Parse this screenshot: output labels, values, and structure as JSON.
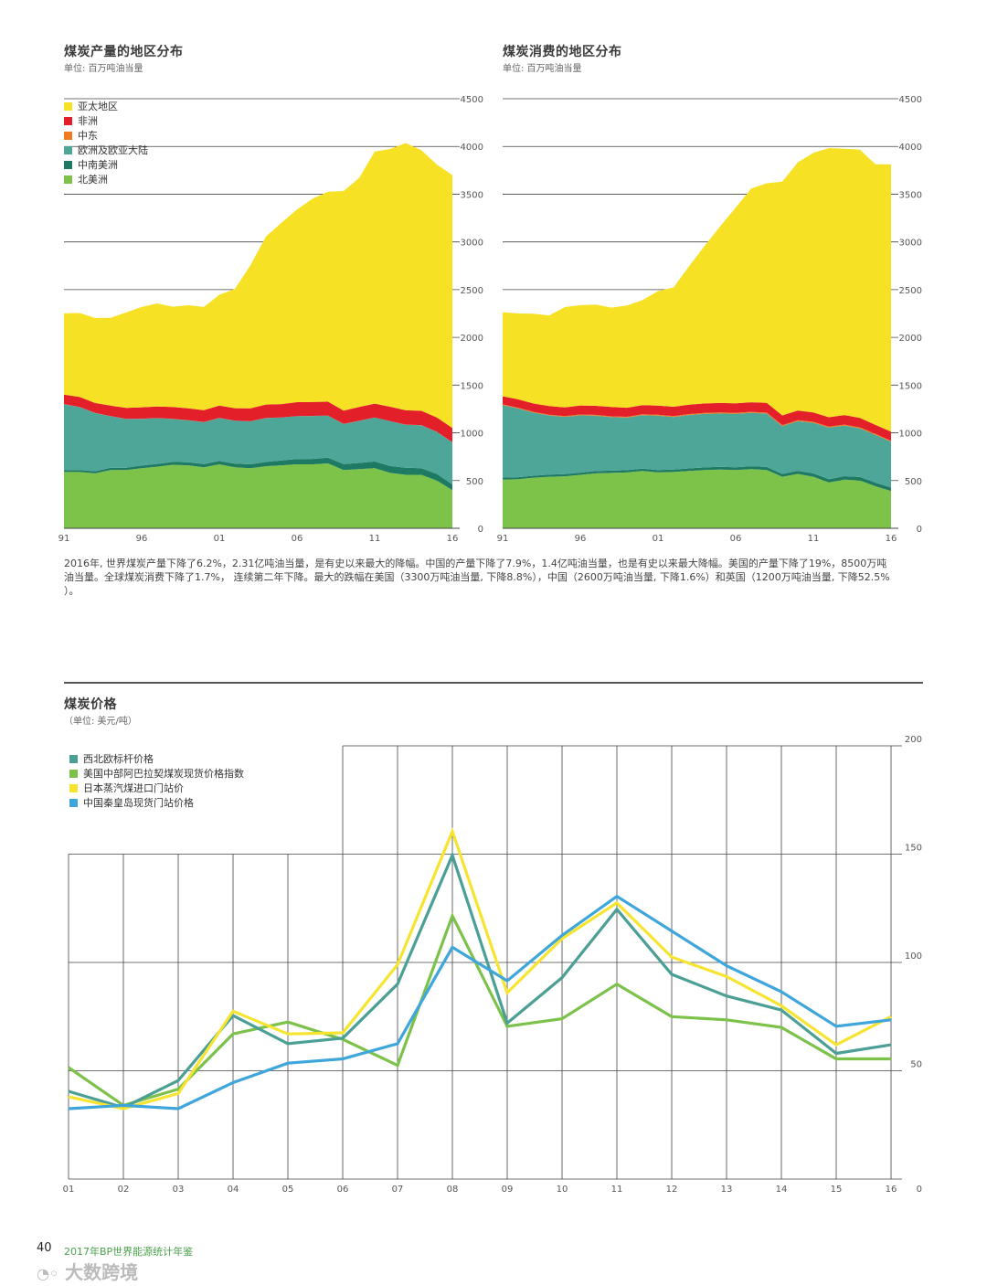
{
  "production": {
    "title": "煤炭产量的地区分布",
    "unit": "单位: 百万吨油当量"
  },
  "consumption": {
    "title": "煤炭消费的地区分布",
    "unit": "单位: 百万吨油当量"
  },
  "prices": {
    "title": "煤炭价格",
    "unit": "（单位: 美元/吨）"
  },
  "paragraph": {
    "line1": "2016年, 世界煤炭产量下降了6.2%，2.31亿吨油当量，是有史以来最大的降幅。中国的产量下降了7.9%，1.4亿吨油当量，也是有史以来最大降幅。美国的产量下降了19%，8500万吨",
    "line2": "油当量。全球煤炭消费下降了1.7%，  连续第二年下降。最大的跌幅在美国（3300万吨油当量, 下降8.8%），中国（2600万吨油当量, 下降1.6%）和英国（1200万吨油当量, 下降52.5%",
    "line3": "）。"
  },
  "footer": {
    "page_number": "40",
    "publication": "2017年BP世界能源统计年鉴",
    "watermark": "大数跨境"
  },
  "colors": {
    "asia_pacific": "#f7e124",
    "africa": "#e3202a",
    "middle_east": "#f07c22",
    "europe_eurasia": "#4ea699",
    "s_c_america": "#1f7a63",
    "north_america": "#7dc34a",
    "nw_europe_price": "#4b9f95",
    "us_appalachian_price": "#7cc24a",
    "japan_price": "#f6e431",
    "china_qhd_price": "#3fa6dc"
  },
  "chart_data": [
    {
      "id": "production",
      "type": "area",
      "stacked": true,
      "title": "煤炭产量的地区分布",
      "ylabel": "单位: 百万吨油当量",
      "ylim": [
        0,
        4500
      ],
      "yticks": [
        "4500",
        "4000",
        "3500",
        "3000",
        "2500",
        "2000",
        "1500",
        "1000",
        "500",
        "0"
      ],
      "xtick_labels": [
        "91",
        "96",
        "01",
        "06",
        "11",
        "16"
      ],
      "legend": [
        "亚太地区",
        "非洲",
        "中东",
        "欧洲及欧亚大陆",
        "中南美洲",
        "北美洲"
      ],
      "x": [
        1991,
        1992,
        1993,
        1994,
        1995,
        1996,
        1997,
        1998,
        1999,
        2000,
        2001,
        2002,
        2003,
        2004,
        2005,
        2006,
        2007,
        2008,
        2009,
        2010,
        2011,
        2012,
        2013,
        2014,
        2015,
        2016
      ],
      "series": [
        {
          "name": "北美洲",
          "values": [
            590,
            590,
            575,
            610,
            610,
            630,
            645,
            665,
            660,
            640,
            670,
            640,
            630,
            650,
            660,
            670,
            670,
            680,
            610,
            620,
            630,
            580,
            560,
            560,
            500,
            400
          ]
        },
        {
          "name": "中南美洲",
          "values": [
            20,
            20,
            22,
            24,
            25,
            27,
            29,
            30,
            31,
            32,
            35,
            37,
            40,
            45,
            50,
            55,
            57,
            60,
            62,
            65,
            70,
            72,
            75,
            70,
            70,
            60
          ]
        },
        {
          "name": "欧洲及欧亚大陆",
          "values": [
            690,
            660,
            610,
            540,
            510,
            490,
            480,
            450,
            440,
            440,
            450,
            450,
            450,
            460,
            450,
            450,
            450,
            440,
            420,
            440,
            460,
            470,
            450,
            450,
            440,
            440
          ]
        },
        {
          "name": "中东",
          "values": [
            1,
            1,
            1,
            1,
            1,
            1,
            1,
            1,
            1,
            1,
            1,
            1,
            1,
            1,
            1,
            1,
            1,
            1,
            1,
            1,
            1,
            1,
            1,
            1,
            1,
            1
          ]
        },
        {
          "name": "非洲",
          "values": [
            100,
            105,
            105,
            110,
            115,
            120,
            120,
            125,
            125,
            125,
            130,
            130,
            135,
            140,
            140,
            145,
            145,
            145,
            140,
            145,
            145,
            150,
            150,
            150,
            150,
            150
          ]
        },
        {
          "name": "亚太地区",
          "values": [
            850,
            880,
            890,
            920,
            1000,
            1050,
            1080,
            1050,
            1080,
            1080,
            1160,
            1250,
            1500,
            1760,
            1900,
            2020,
            2130,
            2200,
            2300,
            2400,
            2640,
            2700,
            2800,
            2730,
            2650,
            2650
          ]
        }
      ]
    },
    {
      "id": "consumption",
      "type": "area",
      "stacked": true,
      "title": "煤炭消费的地区分布",
      "ylabel": "单位: 百万吨油当量",
      "ylim": [
        0,
        4500
      ],
      "yticks": [
        "4500",
        "4000",
        "3500",
        "3000",
        "2500",
        "2000",
        "1500",
        "1000",
        "500",
        "0"
      ],
      "xtick_labels": [
        "91",
        "96",
        "01",
        "06",
        "11",
        "16"
      ],
      "x": [
        1991,
        1992,
        1993,
        1994,
        1995,
        1996,
        1997,
        1998,
        1999,
        2000,
        2001,
        2002,
        2003,
        2004,
        2005,
        2006,
        2007,
        2008,
        2009,
        2010,
        2011,
        2012,
        2013,
        2014,
        2015,
        2016
      ],
      "series": [
        {
          "name": "北美洲",
          "values": [
            510,
            515,
            530,
            540,
            545,
            560,
            575,
            580,
            585,
            600,
            585,
            590,
            600,
            610,
            615,
            610,
            620,
            610,
            540,
            570,
            540,
            480,
            510,
            500,
            440,
            390
          ]
        },
        {
          "name": "中南美洲",
          "values": [
            20,
            20,
            21,
            22,
            22,
            23,
            24,
            24,
            24,
            25,
            25,
            25,
            27,
            28,
            28,
            30,
            30,
            32,
            30,
            32,
            35,
            35,
            36,
            37,
            38,
            37
          ]
        },
        {
          "name": "欧洲及欧亚大陆",
          "values": [
            760,
            720,
            660,
            620,
            600,
            600,
            580,
            560,
            550,
            560,
            570,
            550,
            560,
            560,
            560,
            560,
            560,
            560,
            500,
            520,
            530,
            540,
            530,
            510,
            500,
            480
          ]
        },
        {
          "name": "中东",
          "values": [
            8,
            8,
            8,
            8,
            8,
            9,
            9,
            9,
            9,
            10,
            10,
            10,
            10,
            10,
            10,
            10,
            10,
            10,
            10,
            10,
            10,
            10,
            10,
            10,
            10,
            10
          ]
        },
        {
          "name": "非洲",
          "values": [
            85,
            88,
            88,
            90,
            92,
            95,
            95,
            98,
            95,
            95,
            95,
            98,
            98,
            100,
            100,
            100,
            100,
            102,
            102,
            102,
            98,
            98,
            100,
            100,
            95,
            95
          ]
        },
        {
          "name": "亚太地区",
          "values": [
            880,
            900,
            940,
            950,
            1050,
            1050,
            1060,
            1040,
            1070,
            1100,
            1200,
            1250,
            1450,
            1650,
            1850,
            2050,
            2240,
            2300,
            2450,
            2600,
            2720,
            2820,
            2790,
            2810,
            2730,
            2800
          ]
        }
      ]
    },
    {
      "id": "prices",
      "type": "line",
      "title": "煤炭价格",
      "ylabel": "（单位: 美元/吨）",
      "ylim": [
        0,
        200
      ],
      "yticks": [
        "200",
        "150",
        "100",
        "50",
        "0"
      ],
      "categories": [
        "01",
        "02",
        "03",
        "04",
        "05",
        "06",
        "07",
        "08",
        "09",
        "10",
        "11",
        "12",
        "13",
        "14",
        "15",
        "16"
      ],
      "series": [
        {
          "name": "西北欧标杆价格",
          "values": [
            40.5,
            33.0,
            45.5,
            75.5,
            62.5,
            65.0,
            90.0,
            149.5,
            72.0,
            93.0,
            124.5,
            94.5,
            84.5,
            78.0,
            58.0,
            62.0
          ]
        },
        {
          "name": "美国中部阿巴拉契煤炭现货价格指数",
          "values": [
            51.5,
            34.0,
            41.5,
            67.0,
            72.5,
            64.5,
            52.5,
            121.5,
            70.5,
            74.0,
            90.0,
            75.0,
            73.5,
            70.0,
            55.5,
            55.5
          ]
        },
        {
          "name": "日本蒸汽煤进口门站价",
          "values": [
            38.0,
            32.5,
            39.5,
            77.5,
            67.0,
            67.5,
            99.0,
            160.5,
            86.0,
            111.0,
            127.5,
            102.5,
            93.5,
            80.0,
            62.0,
            75.0
          ]
        },
        {
          "name": "中国秦皇岛现货门站价格",
          "values": [
            32.5,
            34.0,
            32.5,
            44.5,
            53.5,
            55.5,
            62.5,
            107.0,
            91.5,
            112.5,
            130.5,
            114.5,
            98.5,
            86.5,
            70.5,
            73.5
          ]
        }
      ]
    }
  ]
}
